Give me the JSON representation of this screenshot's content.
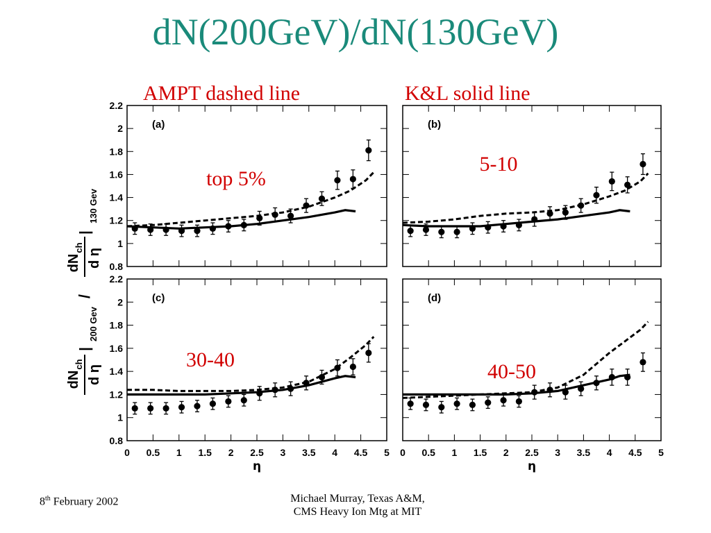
{
  "slide": {
    "title": "dN(200GeV)/dN(130GeV)",
    "left_header": "AMPT dashed line",
    "right_header": "K&L solid line",
    "footer_date_day": "8",
    "footer_date_sup": "th",
    "footer_date_rest": " February 2002",
    "footer_author_line1": "Michael Murray, Texas A&M,",
    "footer_author_line2": "CMS Heavy Ion Mtg at MIT"
  },
  "colors": {
    "title": "#1a8a7a",
    "annotation": "#d10000",
    "ink": "#000000"
  },
  "axis_labels": {
    "xlabel": "η",
    "ylabel_num": "dN",
    "ylabel_num_sub": "ch",
    "ylabel_den": "d η",
    "ylabel_top_sub": "130 Gev",
    "ylabel_bottom_sub": "200 Gev"
  },
  "chart_data": {
    "type": "scatter",
    "xlim": [
      0,
      5
    ],
    "ylim": [
      0.8,
      2.2
    ],
    "x_ticks": [
      "0",
      "0.5",
      "1",
      "1.5",
      "2",
      "2.5",
      "3",
      "3.5",
      "4",
      "4.5",
      "5"
    ],
    "y_ticks": [
      "0.8",
      "1",
      "1.2",
      "1.4",
      "1.6",
      "1.8",
      "2",
      "2.2"
    ],
    "panels": [
      {
        "id": "(a)",
        "annotation": "top 5%",
        "points": {
          "x": [
            0.15,
            0.45,
            0.75,
            1.05,
            1.35,
            1.65,
            1.95,
            2.25,
            2.55,
            2.85,
            3.15,
            3.45,
            3.75,
            4.05,
            4.35,
            4.65
          ],
          "y": [
            1.13,
            1.12,
            1.12,
            1.11,
            1.11,
            1.13,
            1.15,
            1.16,
            1.22,
            1.25,
            1.24,
            1.33,
            1.39,
            1.55,
            1.56,
            1.81
          ],
          "err": [
            0.05,
            0.05,
            0.05,
            0.05,
            0.05,
            0.05,
            0.05,
            0.05,
            0.06,
            0.06,
            0.06,
            0.06,
            0.06,
            0.08,
            0.08,
            0.09
          ]
        },
        "dashed": {
          "x": [
            0,
            0.5,
            1,
            1.5,
            2,
            2.5,
            3,
            3.5,
            4,
            4.3,
            4.6,
            4.75
          ],
          "y": [
            1.15,
            1.16,
            1.18,
            1.2,
            1.22,
            1.24,
            1.27,
            1.32,
            1.4,
            1.46,
            1.55,
            1.62
          ]
        },
        "solid": {
          "x": [
            0,
            0.5,
            1,
            1.5,
            2,
            2.5,
            3,
            3.5,
            4,
            4.2,
            4.4
          ],
          "y": [
            1.15,
            1.14,
            1.13,
            1.14,
            1.15,
            1.17,
            1.2,
            1.23,
            1.27,
            1.29,
            1.28
          ]
        }
      },
      {
        "id": "(b)",
        "annotation": "5-10",
        "points": {
          "x": [
            0.15,
            0.45,
            0.75,
            1.05,
            1.35,
            1.65,
            1.95,
            2.25,
            2.55,
            2.85,
            3.15,
            3.45,
            3.75,
            4.05,
            4.35,
            4.65
          ],
          "y": [
            1.11,
            1.12,
            1.1,
            1.1,
            1.13,
            1.14,
            1.15,
            1.16,
            1.21,
            1.26,
            1.27,
            1.33,
            1.42,
            1.54,
            1.51,
            1.69
          ],
          "err": [
            0.05,
            0.05,
            0.05,
            0.05,
            0.05,
            0.05,
            0.05,
            0.05,
            0.06,
            0.06,
            0.06,
            0.06,
            0.07,
            0.08,
            0.07,
            0.09
          ]
        },
        "dashed": {
          "x": [
            0,
            0.5,
            1,
            1.5,
            2,
            2.5,
            3,
            3.5,
            4,
            4.3,
            4.6,
            4.75
          ],
          "y": [
            1.18,
            1.19,
            1.21,
            1.24,
            1.26,
            1.27,
            1.29,
            1.34,
            1.41,
            1.46,
            1.54,
            1.61
          ]
        },
        "solid": {
          "x": [
            0,
            0.5,
            1,
            1.5,
            2,
            2.5,
            3,
            3.5,
            4,
            4.2,
            4.4
          ],
          "y": [
            1.16,
            1.15,
            1.15,
            1.15,
            1.17,
            1.19,
            1.21,
            1.24,
            1.27,
            1.29,
            1.28
          ]
        }
      },
      {
        "id": "(c)",
        "annotation": "30-40",
        "points": {
          "x": [
            0.15,
            0.45,
            0.75,
            1.05,
            1.35,
            1.65,
            1.95,
            2.25,
            2.55,
            2.85,
            3.15,
            3.45,
            3.75,
            4.05,
            4.35,
            4.65
          ],
          "y": [
            1.08,
            1.08,
            1.08,
            1.09,
            1.1,
            1.12,
            1.14,
            1.15,
            1.21,
            1.24,
            1.25,
            1.3,
            1.35,
            1.43,
            1.44,
            1.56
          ],
          "err": [
            0.05,
            0.05,
            0.05,
            0.05,
            0.05,
            0.05,
            0.05,
            0.05,
            0.06,
            0.06,
            0.06,
            0.06,
            0.06,
            0.07,
            0.07,
            0.08
          ]
        },
        "dashed": {
          "x": [
            0,
            0.5,
            1,
            1.5,
            2,
            2.5,
            3,
            3.5,
            4,
            4.3,
            4.6,
            4.75
          ],
          "y": [
            1.24,
            1.24,
            1.23,
            1.23,
            1.23,
            1.24,
            1.26,
            1.31,
            1.42,
            1.52,
            1.63,
            1.7
          ]
        },
        "solid": {
          "x": [
            0,
            0.5,
            1,
            1.5,
            2,
            2.5,
            3,
            3.5,
            4,
            4.2,
            4.4
          ],
          "y": [
            1.2,
            1.2,
            1.2,
            1.2,
            1.21,
            1.22,
            1.24,
            1.28,
            1.34,
            1.36,
            1.35
          ]
        }
      },
      {
        "id": "(d)",
        "annotation": "40-50",
        "points": {
          "x": [
            0.15,
            0.45,
            0.75,
            1.05,
            1.35,
            1.65,
            1.95,
            2.25,
            2.55,
            2.85,
            3.15,
            3.45,
            3.75,
            4.05,
            4.35,
            4.65
          ],
          "y": [
            1.12,
            1.11,
            1.09,
            1.12,
            1.11,
            1.13,
            1.15,
            1.14,
            1.22,
            1.24,
            1.22,
            1.25,
            1.3,
            1.35,
            1.35,
            1.48
          ],
          "err": [
            0.05,
            0.05,
            0.05,
            0.05,
            0.05,
            0.05,
            0.05,
            0.05,
            0.06,
            0.06,
            0.06,
            0.06,
            0.06,
            0.07,
            0.07,
            0.08
          ]
        },
        "dashed": {
          "x": [
            0,
            0.5,
            1,
            1.5,
            2,
            2.5,
            3,
            3.5,
            4,
            4.3,
            4.6,
            4.75
          ],
          "y": [
            1.17,
            1.18,
            1.19,
            1.2,
            1.21,
            1.22,
            1.26,
            1.37,
            1.56,
            1.66,
            1.76,
            1.83
          ]
        },
        "solid": {
          "x": [
            0,
            0.5,
            1,
            1.5,
            2,
            2.5,
            3,
            3.5,
            4,
            4.2,
            4.4
          ],
          "y": [
            1.2,
            1.2,
            1.2,
            1.2,
            1.2,
            1.21,
            1.23,
            1.28,
            1.33,
            1.36,
            1.37
          ]
        }
      }
    ]
  }
}
